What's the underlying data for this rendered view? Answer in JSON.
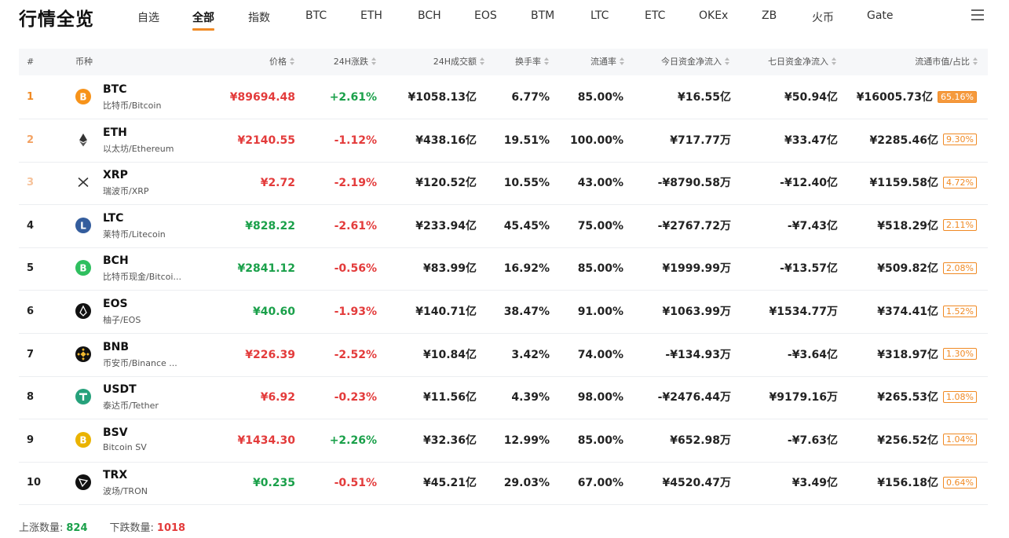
{
  "header": {
    "title": "行情全览",
    "tabs": [
      "自选",
      "全部",
      "指数",
      "BTC",
      "ETH",
      "BCH",
      "EOS",
      "BTM",
      "LTC",
      "ETC",
      "OKEx",
      "ZB",
      "火币",
      "Gate"
    ],
    "active_tab": "全部",
    "menu_icon": "hamburger-menu-icon"
  },
  "columns": {
    "rank": "#",
    "coin": "币种",
    "price": "价格",
    "change": "24H涨跌",
    "volume": "24H成交额",
    "turnover": "换手率",
    "circulation": "流通率",
    "flow_today": "今日资金净流入",
    "flow_7d": "七日资金净流入",
    "market_cap": "流通市值/占比"
  },
  "rows": [
    {
      "rank": "1",
      "symbol": "BTC",
      "name": "比特币/Bitcoin",
      "icon": "bitcoin-icon",
      "price": "¥89694.48",
      "price_dir": "down",
      "change": "+2.61%",
      "change_dir": "up",
      "volume": "¥1058.13亿",
      "turnover": "6.77%",
      "circulation": "85.00%",
      "flow_today": "¥16.55亿",
      "flow_7d": "¥50.94亿",
      "market_cap": "¥16005.73亿",
      "share": "65.16%"
    },
    {
      "rank": "2",
      "symbol": "ETH",
      "name": "以太坊/Ethereum",
      "icon": "ethereum-icon",
      "price": "¥2140.55",
      "price_dir": "down",
      "change": "-1.12%",
      "change_dir": "down",
      "volume": "¥438.16亿",
      "turnover": "19.51%",
      "circulation": "100.00%",
      "flow_today": "¥717.77万",
      "flow_7d": "¥33.47亿",
      "market_cap": "¥2285.46亿",
      "share": "9.30%"
    },
    {
      "rank": "3",
      "symbol": "XRP",
      "name": "瑞波币/XRP",
      "icon": "ripple-icon",
      "price": "¥2.72",
      "price_dir": "down",
      "change": "-2.19%",
      "change_dir": "down",
      "volume": "¥120.52亿",
      "turnover": "10.55%",
      "circulation": "43.00%",
      "flow_today": "-¥8790.58万",
      "flow_7d": "-¥12.40亿",
      "market_cap": "¥1159.58亿",
      "share": "4.72%"
    },
    {
      "rank": "4",
      "symbol": "LTC",
      "name": "莱特币/Litecoin",
      "icon": "litecoin-icon",
      "price": "¥828.22",
      "price_dir": "up",
      "change": "-2.61%",
      "change_dir": "down",
      "volume": "¥233.94亿",
      "turnover": "45.45%",
      "circulation": "75.00%",
      "flow_today": "-¥2767.72万",
      "flow_7d": "-¥7.43亿",
      "market_cap": "¥518.29亿",
      "share": "2.11%"
    },
    {
      "rank": "5",
      "symbol": "BCH",
      "name": "比特币现金/Bitcoi...",
      "icon": "bitcoin-cash-icon",
      "price": "¥2841.12",
      "price_dir": "up",
      "change": "-0.56%",
      "change_dir": "down",
      "volume": "¥83.99亿",
      "turnover": "16.92%",
      "circulation": "85.00%",
      "flow_today": "¥1999.99万",
      "flow_7d": "-¥13.57亿",
      "market_cap": "¥509.82亿",
      "share": "2.08%"
    },
    {
      "rank": "6",
      "symbol": "EOS",
      "name": "柚子/EOS",
      "icon": "eos-icon",
      "price": "¥40.60",
      "price_dir": "up",
      "change": "-1.93%",
      "change_dir": "down",
      "volume": "¥140.71亿",
      "turnover": "38.47%",
      "circulation": "91.00%",
      "flow_today": "¥1063.99万",
      "flow_7d": "¥1534.77万",
      "market_cap": "¥374.41亿",
      "share": "1.52%"
    },
    {
      "rank": "7",
      "symbol": "BNB",
      "name": "币安币/Binance ...",
      "icon": "binance-icon",
      "price": "¥226.39",
      "price_dir": "down",
      "change": "-2.52%",
      "change_dir": "down",
      "volume": "¥10.84亿",
      "turnover": "3.42%",
      "circulation": "74.00%",
      "flow_today": "-¥134.93万",
      "flow_7d": "-¥3.64亿",
      "market_cap": "¥318.97亿",
      "share": "1.30%"
    },
    {
      "rank": "8",
      "symbol": "USDT",
      "name": "泰达币/Tether",
      "icon": "tether-icon",
      "price": "¥6.92",
      "price_dir": "down",
      "change": "-0.23%",
      "change_dir": "down",
      "volume": "¥11.56亿",
      "turnover": "4.39%",
      "circulation": "98.00%",
      "flow_today": "-¥2476.44万",
      "flow_7d": "¥9179.16万",
      "market_cap": "¥265.53亿",
      "share": "1.08%"
    },
    {
      "rank": "9",
      "symbol": "BSV",
      "name": "Bitcoin SV",
      "icon": "bitcoin-sv-icon",
      "price": "¥1434.30",
      "price_dir": "down",
      "change": "+2.26%",
      "change_dir": "up",
      "volume": "¥32.36亿",
      "turnover": "12.99%",
      "circulation": "85.00%",
      "flow_today": "¥652.98万",
      "flow_7d": "-¥7.63亿",
      "market_cap": "¥256.52亿",
      "share": "1.04%"
    },
    {
      "rank": "10",
      "symbol": "TRX",
      "name": "波场/TRON",
      "icon": "tron-icon",
      "price": "¥0.235",
      "price_dir": "up",
      "change": "-0.51%",
      "change_dir": "down",
      "volume": "¥45.21亿",
      "turnover": "29.03%",
      "circulation": "67.00%",
      "flow_today": "¥4520.47万",
      "flow_7d": "¥3.49亿",
      "market_cap": "¥156.18亿",
      "share": "0.64%"
    }
  ],
  "footer": {
    "up_label": "上涨数量:",
    "up_count": "824",
    "down_label": "下跌数量:",
    "down_count": "1018"
  },
  "colors": {
    "accent": "#f08a24",
    "up": "#1aa04a",
    "down": "#e33b3b",
    "rank_top": [
      "#f08a24",
      "#f3a263",
      "#f6c29a"
    ]
  }
}
